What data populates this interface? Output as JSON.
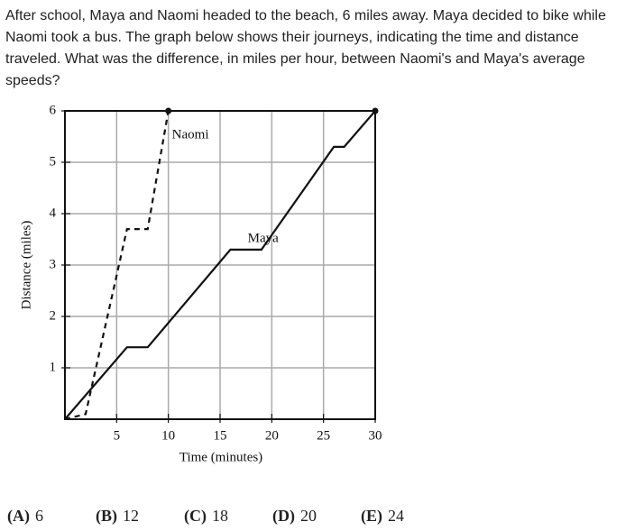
{
  "question": "After school, Maya and Naomi headed to the beach, 6 miles away. Maya decided to bike while Naomi took a bus. The graph below shows their journeys, indicating the time and distance traveled. What was the difference, in miles per hour, between Naomi's and Maya's average speeds?",
  "chart_data": {
    "type": "line",
    "xlabel": "Time (minutes)",
    "ylabel": "Distance (miles)",
    "xlim": [
      0,
      30
    ],
    "ylim": [
      0,
      6
    ],
    "xticks": [
      5,
      10,
      15,
      20,
      25,
      30
    ],
    "yticks": [
      1,
      2,
      3,
      4,
      5,
      6
    ],
    "grid": true,
    "series": [
      {
        "name": "Naomi",
        "color": "#111111",
        "dashed": true,
        "x": [
          0,
          2,
          6,
          8,
          10
        ],
        "values": [
          0,
          0.1,
          3.7,
          3.7,
          6
        ]
      },
      {
        "name": "Maya",
        "color": "#111111",
        "dashed": false,
        "x": [
          0,
          6,
          8,
          16,
          19,
          26,
          27,
          30
        ],
        "values": [
          0,
          1.4,
          1.4,
          3.3,
          3.3,
          5.3,
          5.3,
          6
        ]
      }
    ]
  },
  "choices": [
    {
      "letter": "(A)",
      "text": "6"
    },
    {
      "letter": "(B)",
      "text": "12"
    },
    {
      "letter": "(C)",
      "text": "18"
    },
    {
      "letter": "(D)",
      "text": "20"
    },
    {
      "letter": "(E)",
      "text": "24"
    }
  ]
}
